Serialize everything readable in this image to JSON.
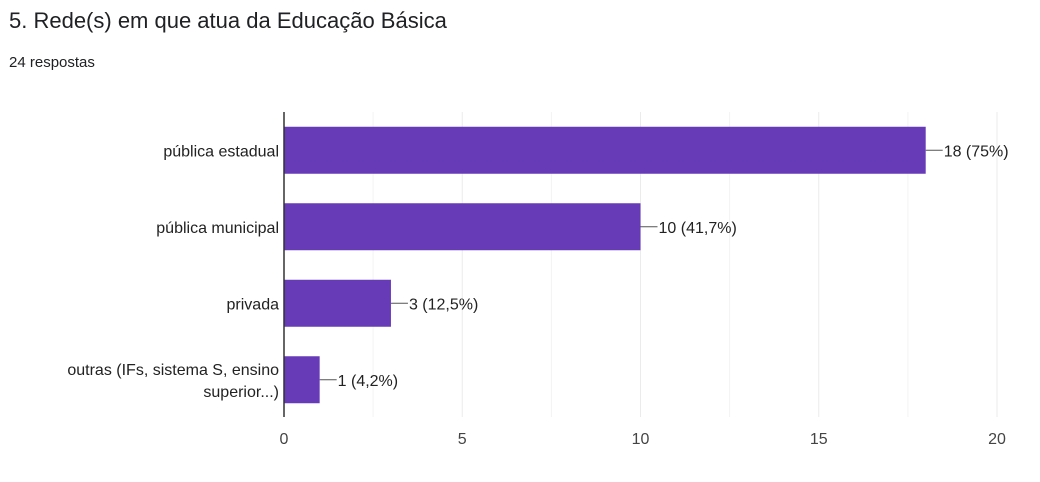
{
  "header": {
    "title": "5. Rede(s) em que atua da Educação Básica",
    "subtitle": "24 respostas"
  },
  "colors": {
    "bar": "#673ab7",
    "grid": "#ebebeb",
    "axis": "#333333",
    "leader": "#555555"
  },
  "chart_data": {
    "type": "bar",
    "orientation": "horizontal",
    "categories": [
      [
        "pública estadual"
      ],
      [
        "pública municipal"
      ],
      [
        "privada"
      ],
      [
        "outras (IFs, sistema S, ensino",
        "superior...)"
      ]
    ],
    "values": [
      18,
      10,
      3,
      1
    ],
    "data_labels": [
      "18 (75%)",
      "10 (41,7%)",
      "3 (12,5%)",
      "1 (4,2%)"
    ],
    "x_ticks": [
      0,
      5,
      10,
      15,
      20
    ],
    "xlim": [
      0,
      20
    ],
    "grid": true,
    "title": "5. Rede(s) em que atua da Educação Básica",
    "xlabel": "",
    "ylabel": ""
  }
}
